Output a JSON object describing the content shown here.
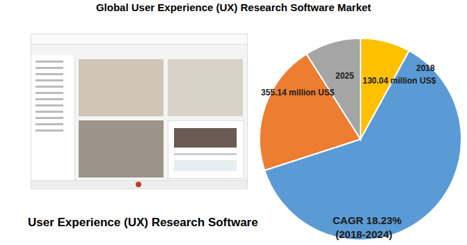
{
  "caption": "User Experience (UX) Research Software",
  "chart_data": {
    "type": "pie",
    "title": "Global User Experience (UX) Research Software Market",
    "values": [
      8,
      62,
      21,
      9
    ],
    "colors": [
      "#ffc000",
      "#5b9bd5",
      "#ed7d31",
      "#a5a5a5"
    ],
    "annotations": [
      "2025",
      "355.14 million US$",
      "2018",
      "130.04 million US$",
      "CAGR 18.23%",
      "(2018-2024)"
    ]
  }
}
